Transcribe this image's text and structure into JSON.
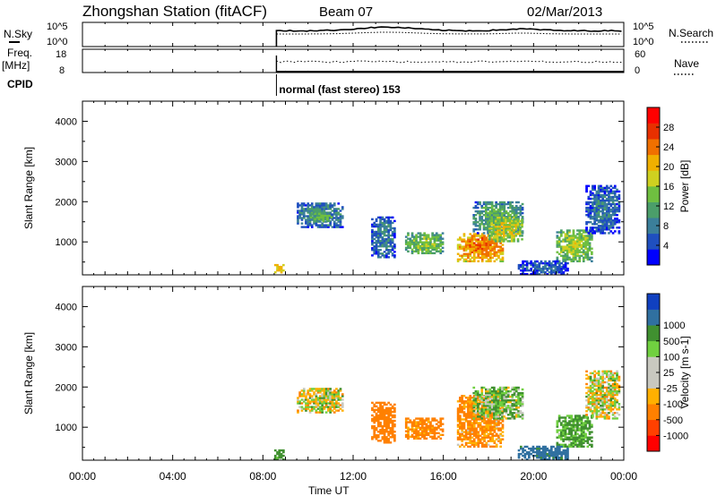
{
  "header": {
    "station": "Zhongshan Station (fitACF)",
    "beam": "Beam 07",
    "date": "02/Mar/2013"
  },
  "top_panels": {
    "nsky_label": "N.Sky",
    "nsky_ticks": [
      "10^5",
      "10^0"
    ],
    "nsearch_label": "N.Search",
    "nsearch_ticks": [
      "10^5",
      "10^0"
    ],
    "freq_label": "Freq.",
    "freq_unit": "[MHz]",
    "freq_ticks": [
      "18",
      "8"
    ],
    "nave_label": "Nave",
    "nave_ticks": [
      "60",
      "0"
    ],
    "cpid_label": "CPID",
    "cpid_text": "normal (fast stereo) 153"
  },
  "colors": {
    "power": [
      "#0000ff",
      "#1f4fbf",
      "#3b7f9a",
      "#4b9e6a",
      "#6fbf40",
      "#cfd020",
      "#f0b000",
      "#f07000",
      "#e83000",
      "#ff0000"
    ],
    "velocity": [
      "#ff0000",
      "#ff4000",
      "#ff8000",
      "#ffb000",
      "#c8c8c0",
      "#c8c8c0",
      "#70d040",
      "#409030",
      "#3070a0",
      "#1040c0"
    ]
  },
  "chart_data": [
    {
      "type": "heatmap",
      "name": "power",
      "ylabel": "Slant Range [km]",
      "yticks": [
        "1000",
        "2000",
        "3000",
        "4000"
      ],
      "ylim": [
        180,
        4500
      ],
      "xlim": [
        0,
        24
      ],
      "colorbar": {
        "label": "Power [dB]",
        "ticks": [
          "4",
          "8",
          "12",
          "16",
          "20",
          "24",
          "28"
        ],
        "range": [
          0,
          32
        ]
      },
      "regions": [
        {
          "t0": 8.5,
          "t1": 8.9,
          "r0": 180,
          "r1": 450,
          "v": 22
        },
        {
          "t0": 9.5,
          "t1": 11.5,
          "r0": 1350,
          "r1": 1950,
          "v": 10
        },
        {
          "t0": 10.0,
          "t1": 11.0,
          "r0": 1500,
          "r1": 1700,
          "v": 14
        },
        {
          "t0": 12.8,
          "t1": 13.8,
          "r0": 600,
          "r1": 1600,
          "v": 9
        },
        {
          "t0": 14.3,
          "t1": 16.0,
          "r0": 700,
          "r1": 1200,
          "v": 15
        },
        {
          "t0": 16.6,
          "t1": 18.6,
          "r0": 500,
          "r1": 1200,
          "v": 24
        },
        {
          "t0": 17.3,
          "t1": 19.5,
          "r0": 1200,
          "r1": 2000,
          "v": 12
        },
        {
          "t0": 18.0,
          "t1": 19.5,
          "r0": 1000,
          "r1": 1600,
          "v": 18
        },
        {
          "t0": 21.0,
          "t1": 22.6,
          "r0": 500,
          "r1": 1300,
          "v": 16
        },
        {
          "t0": 22.3,
          "t1": 23.8,
          "r0": 1200,
          "r1": 2400,
          "v": 8
        },
        {
          "t0": 19.3,
          "t1": 21.5,
          "r0": 180,
          "r1": 500,
          "v": 7
        }
      ]
    },
    {
      "type": "heatmap",
      "name": "velocity",
      "ylabel": "Slant Range [km]",
      "yticks": [
        "1000",
        "2000",
        "3000",
        "4000"
      ],
      "ylim": [
        180,
        4500
      ],
      "xlim": [
        0,
        24
      ],
      "xticks": [
        "00:00",
        "04:00",
        "08:00",
        "12:00",
        "16:00",
        "20:00",
        "00:00"
      ],
      "xlabel": "Time UT",
      "colorbar": {
        "label": "Velocity [m s-1]",
        "ticks": [
          "-1000",
          "-500",
          "-100",
          "-25",
          "25",
          "100",
          "500",
          "1000"
        ],
        "range": [
          -1200,
          1200
        ]
      },
      "regions": [
        {
          "t0": 8.5,
          "t1": 8.9,
          "r0": 180,
          "r1": 450,
          "v": 200
        },
        {
          "t0": 9.5,
          "t1": 11.5,
          "r0": 1350,
          "r1": 1950,
          "v": 0
        },
        {
          "t0": 12.8,
          "t1": 13.8,
          "r0": 600,
          "r1": 1600,
          "v": -300
        },
        {
          "t0": 14.3,
          "t1": 16.0,
          "r0": 700,
          "r1": 1200,
          "v": -200
        },
        {
          "t0": 16.6,
          "t1": 18.6,
          "r0": 500,
          "r1": 1800,
          "v": -150
        },
        {
          "t0": 17.3,
          "t1": 19.5,
          "r0": 1200,
          "r1": 2000,
          "v": 80
        },
        {
          "t0": 21.0,
          "t1": 22.6,
          "r0": 500,
          "r1": 1300,
          "v": 150
        },
        {
          "t0": 22.3,
          "t1": 23.8,
          "r0": 1200,
          "r1": 2400,
          "v": 0
        },
        {
          "t0": 19.3,
          "t1": 21.5,
          "r0": 180,
          "r1": 500,
          "v": 600
        }
      ]
    }
  ]
}
